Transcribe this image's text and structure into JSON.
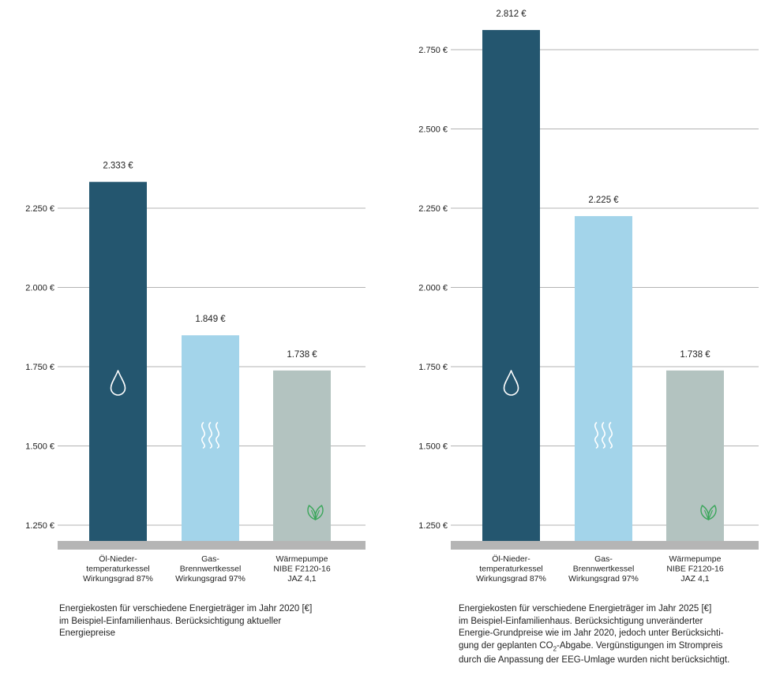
{
  "colors": {
    "oil": "#24566f",
    "gas": "#a3d4ea",
    "heatpump": "#b3c3c0",
    "baseline": "#b5b5b5",
    "grid": "#9a9a9a",
    "leaf": "#3aa65a"
  },
  "icons": [
    "droplet-icon",
    "heat-waves-icon",
    "leaf-icon"
  ],
  "chart_data": [
    {
      "type": "bar",
      "categories": [
        [
          "Öl-Nieder-",
          "temperaturkessel",
          "Wirkungsgrad 87%"
        ],
        [
          "Gas-",
          "Brennwertkessel",
          "Wirkungsgrad 97%"
        ],
        [
          "Wärmepumpe",
          "NIBE F2120-16",
          "JAZ 4,1"
        ]
      ],
      "values": [
        2333,
        1849,
        1738
      ],
      "value_labels": [
        "2.333 €",
        "1.849 €",
        "1.738 €"
      ],
      "yticks": [
        1250,
        1500,
        1750,
        2000,
        2250
      ],
      "ytick_labels": [
        "1.250 €",
        "1.500 €",
        "1.750 €",
        "2.000 €",
        "2.250 €"
      ],
      "ylim": [
        1200,
        2500
      ],
      "grid": true,
      "caption": [
        "Energiekosten für verschiedene Energieträger im Jahr 2020 [€]",
        "im Beispiel-Einfamilienhaus. Berücksichtigung aktueller",
        "Energiepreise"
      ]
    },
    {
      "type": "bar",
      "categories": [
        [
          "Öl-Nieder-",
          "temperaturkessel",
          "Wirkungsgrad 87%"
        ],
        [
          "Gas-",
          "Brennwertkessel",
          "Wirkungsgrad 97%"
        ],
        [
          "Wärmepumpe",
          "NIBE F2120-16",
          "JAZ 4,1"
        ]
      ],
      "values": [
        2812,
        2225,
        1738
      ],
      "value_labels": [
        "2.812 €",
        "2.225 €",
        "1.738 €"
      ],
      "yticks": [
        1250,
        1500,
        1750,
        2000,
        2250,
        2500,
        2750
      ],
      "ytick_labels": [
        "1.250 €",
        "1.500 €",
        "1.750 €",
        "2.000 €",
        "2.250 €",
        "2.500 €",
        "2.750 €"
      ],
      "ylim": [
        1200,
        2900
      ],
      "grid": true,
      "caption": [
        "Energiekosten für verschiedene Energieträger im Jahr 2025 [€]",
        "im Beispiel-Einfamilienhaus. Berücksichtigung unveränderter",
        "Energie-Grundpreise wie im Jahr 2020, jedoch unter Berücksichti-",
        "gung der geplanten CO",
        "2",
        "-Abgabe. Vergünstigungen im Strompreis",
        "durch die Anpassung der EEG-Umlage wurden nicht berücksichtigt."
      ]
    }
  ]
}
